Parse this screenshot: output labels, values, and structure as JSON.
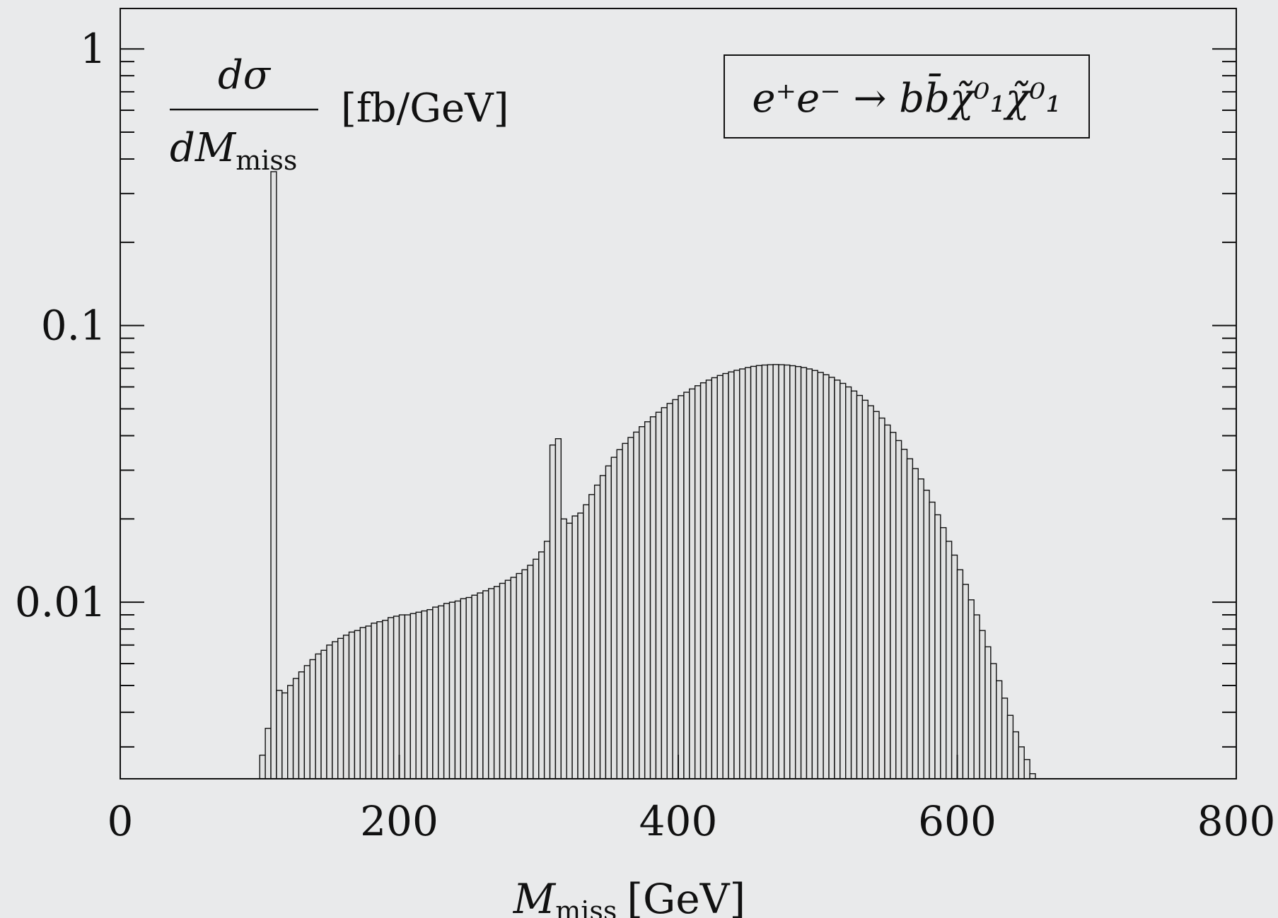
{
  "chart_data": {
    "type": "bar",
    "subtype": "histogram",
    "yscale": "log",
    "xlim": [
      0,
      800
    ],
    "ylim": [
      0.0023,
      1.4
    ],
    "bin_width": 4,
    "x_start": 100,
    "x_ticks": [
      "0",
      "200",
      "400",
      "600",
      "800"
    ],
    "x_tick_values": [
      0,
      200,
      400,
      600,
      800
    ],
    "y_ticks": [
      "1",
      "0.1",
      "0.01"
    ],
    "y_tick_values": [
      1,
      0.1,
      0.01
    ],
    "xlabel": {
      "main": "M",
      "sub": "miss",
      "unit": "[GeV]"
    },
    "ylabel": {
      "numerator": "dσ",
      "denominator_main": "dM",
      "denominator_sub": "miss",
      "unit": "[fb/GeV]"
    },
    "legend": {
      "text": "e⁺e⁻ → bb̄χ̃⁰₁χ̃⁰₁",
      "placement": "top-right"
    },
    "grid": false,
    "colors": {
      "bar_fill": "#e1e2e2",
      "bar_stroke": "#111111",
      "background": "#e9eaeb"
    },
    "values": [
      0.0028,
      0.0035,
      0.36,
      0.0048,
      0.0047,
      0.005,
      0.0053,
      0.0056,
      0.0059,
      0.0062,
      0.0065,
      0.0067,
      0.007,
      0.0072,
      0.0074,
      0.0076,
      0.0078,
      0.0079,
      0.0081,
      0.0082,
      0.0084,
      0.0085,
      0.0086,
      0.0088,
      0.0089,
      0.009,
      0.009,
      0.0091,
      0.0092,
      0.0093,
      0.0094,
      0.0096,
      0.0097,
      0.0099,
      0.01,
      0.0101,
      0.0103,
      0.0104,
      0.0106,
      0.0108,
      0.011,
      0.0112,
      0.0114,
      0.0117,
      0.012,
      0.0123,
      0.0127,
      0.0131,
      0.0136,
      0.0143,
      0.0152,
      0.0166,
      0.037,
      0.039,
      0.02,
      0.0193,
      0.0205,
      0.021,
      0.0225,
      0.0245,
      0.0265,
      0.0287,
      0.0311,
      0.0334,
      0.0356,
      0.0375,
      0.0394,
      0.0412,
      0.0431,
      0.0449,
      0.0468,
      0.0486,
      0.0505,
      0.0523,
      0.054,
      0.0558,
      0.0574,
      0.059,
      0.0606,
      0.0621,
      0.0635,
      0.0648,
      0.066,
      0.0671,
      0.068,
      0.0689,
      0.0697,
      0.0705,
      0.0712,
      0.0717,
      0.072,
      0.0722,
      0.0723,
      0.0722,
      0.072,
      0.0716,
      0.0711,
      0.0705,
      0.0697,
      0.0688,
      0.0677,
      0.0664,
      0.065,
      0.0635,
      0.0618,
      0.06,
      0.058,
      0.0559,
      0.0537,
      0.0513,
      0.0489,
      0.0463,
      0.0437,
      0.0411,
      0.0384,
      0.0357,
      0.033,
      0.0304,
      0.0279,
      0.0254,
      0.023,
      0.0207,
      0.0186,
      0.0166,
      0.0148,
      0.0131,
      0.0116,
      0.0102,
      0.009,
      0.0079,
      0.0069,
      0.006,
      0.0052,
      0.0045,
      0.0039,
      0.0034,
      0.003,
      0.0027,
      0.0024
    ]
  }
}
